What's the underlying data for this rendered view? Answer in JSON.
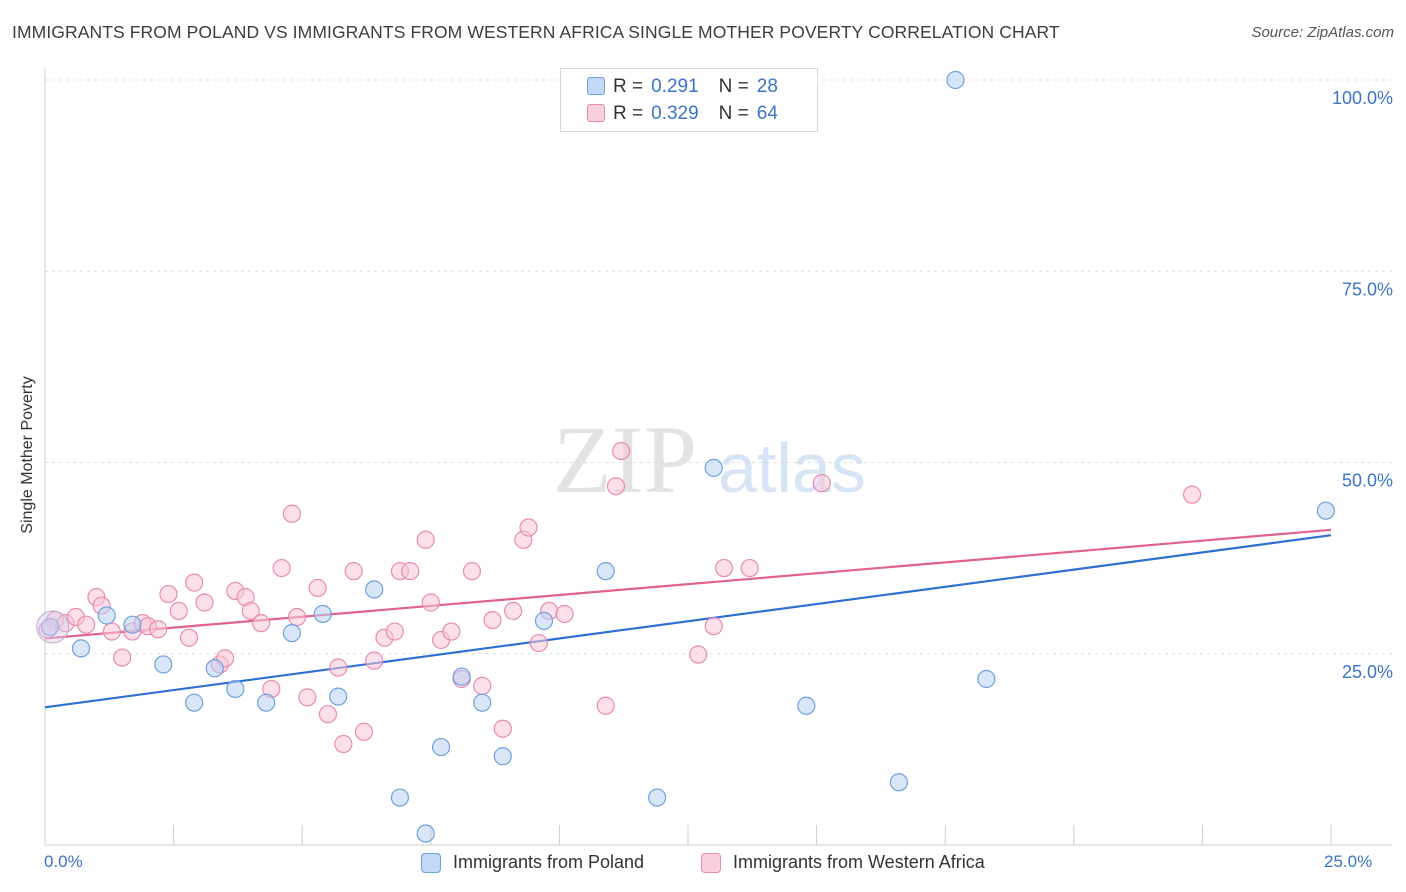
{
  "title": "IMMIGRANTS FROM POLAND VS IMMIGRANTS FROM WESTERN AFRICA SINGLE MOTHER POVERTY CORRELATION CHART",
  "source": "Source: ZipAtlas.com",
  "watermark": {
    "zip": "ZIP",
    "atlas": "atlas"
  },
  "legend": {
    "rows": [
      {
        "r_label": "R =",
        "r_value": "0.291",
        "n_label": "N =",
        "n_value": "28"
      },
      {
        "r_label": "R =",
        "r_value": "0.329",
        "n_label": "N =",
        "n_value": "64"
      }
    ]
  },
  "bottom_legend": [
    "Immigrants from Poland",
    "Immigrants from Western Africa"
  ],
  "chart_data": {
    "type": "scatter",
    "ylabel": "Single Mother Poverty",
    "x_tick_labels": [
      "0.0%",
      "25.0%"
    ],
    "y_tick_labels": [
      "25.0%",
      "50.0%",
      "75.0%",
      "100.0%"
    ],
    "xlim": [
      0,
      25
    ],
    "ylim": [
      0,
      100
    ],
    "grid": true,
    "series": [
      {
        "name": "Immigrants from Poland",
        "color": "#6fa0e0",
        "fill": "#b9d2f3",
        "line_color": "#2f6fd0",
        "trend": [
          [
            0,
            18
          ],
          [
            25,
            40.5
          ]
        ],
        "points": [
          [
            0.1,
            28.5
          ],
          [
            0.7,
            25.7
          ],
          [
            1.2,
            30
          ],
          [
            1.7,
            28.8
          ],
          [
            2.3,
            23.6
          ],
          [
            2.9,
            18.6
          ],
          [
            3.3,
            23.1
          ],
          [
            3.7,
            20.4
          ],
          [
            4.3,
            18.6
          ],
          [
            4.8,
            27.7
          ],
          [
            5.4,
            30.2
          ],
          [
            5.7,
            19.4
          ],
          [
            6.4,
            33.4
          ],
          [
            6.9,
            6.2
          ],
          [
            7.4,
            1.5
          ],
          [
            7.7,
            12.8
          ],
          [
            8.1,
            22
          ],
          [
            8.5,
            18.6
          ],
          [
            8.9,
            11.6
          ],
          [
            9.7,
            29.3
          ],
          [
            10.9,
            35.8
          ],
          [
            11.9,
            6.2
          ],
          [
            13,
            49.3
          ],
          [
            14.8,
            18.2
          ],
          [
            16.6,
            8.2
          ],
          [
            17.7,
            100
          ],
          [
            18.3,
            21.7
          ],
          [
            24.9,
            43.7
          ]
        ]
      },
      {
        "name": "Immigrants from Western Africa",
        "color": "#e98bb0",
        "fill": "#f7c6d8",
        "line_color": "#e0628f",
        "trend": [
          [
            0,
            27
          ],
          [
            25,
            41.2
          ]
        ],
        "points": [
          [
            0.2,
            29.4
          ],
          [
            0.4,
            29
          ],
          [
            0.6,
            29.8
          ],
          [
            0.8,
            28.8
          ],
          [
            1,
            32.4
          ],
          [
            1.1,
            31.3
          ],
          [
            1.3,
            27.9
          ],
          [
            1.5,
            24.5
          ],
          [
            1.7,
            27.9
          ],
          [
            1.9,
            29
          ],
          [
            2,
            28.6
          ],
          [
            2.2,
            28.2
          ],
          [
            2.4,
            32.8
          ],
          [
            2.6,
            30.6
          ],
          [
            2.8,
            27.1
          ],
          [
            2.9,
            34.3
          ],
          [
            3.1,
            31.7
          ],
          [
            3.4,
            23.6
          ],
          [
            3.5,
            24.4
          ],
          [
            3.7,
            33.2
          ],
          [
            3.9,
            32.4
          ],
          [
            4,
            30.6
          ],
          [
            4.2,
            29
          ],
          [
            4.4,
            20.4
          ],
          [
            4.6,
            36.2
          ],
          [
            4.8,
            43.3
          ],
          [
            4.9,
            29.8
          ],
          [
            5.1,
            19.3
          ],
          [
            5.3,
            33.6
          ],
          [
            5.5,
            17.1
          ],
          [
            5.7,
            23.2
          ],
          [
            5.8,
            13.2
          ],
          [
            6,
            35.8
          ],
          [
            6.2,
            14.8
          ],
          [
            6.4,
            24.1
          ],
          [
            6.6,
            27.1
          ],
          [
            6.8,
            27.9
          ],
          [
            6.9,
            35.8
          ],
          [
            7.1,
            35.8
          ],
          [
            7.4,
            39.9
          ],
          [
            7.5,
            31.7
          ],
          [
            7.7,
            26.8
          ],
          [
            7.9,
            27.9
          ],
          [
            8.1,
            21.7
          ],
          [
            8.3,
            35.8
          ],
          [
            8.5,
            20.8
          ],
          [
            8.7,
            29.4
          ],
          [
            8.9,
            15.2
          ],
          [
            9.1,
            30.6
          ],
          [
            9.3,
            39.9
          ],
          [
            9.4,
            41.5
          ],
          [
            9.6,
            26.4
          ],
          [
            9.8,
            30.6
          ],
          [
            10.1,
            30.2
          ],
          [
            10.9,
            18.2
          ],
          [
            11.1,
            46.9
          ],
          [
            11.2,
            51.5
          ],
          [
            12.7,
            24.9
          ],
          [
            13,
            28.6
          ],
          [
            13.2,
            36.2
          ],
          [
            13.7,
            36.2
          ],
          [
            15.1,
            47.3
          ],
          [
            22.3,
            45.8
          ],
          [
            0.05,
            28.2
          ]
        ]
      }
    ]
  }
}
